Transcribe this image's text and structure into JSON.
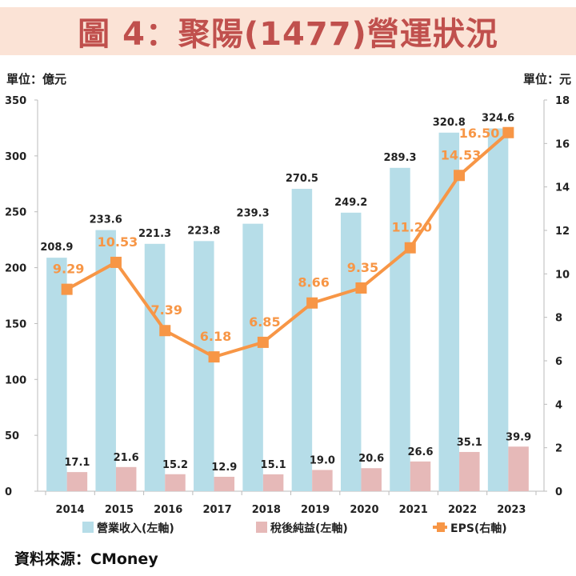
{
  "title": "圖 4：聚陽(1477)營運狀況",
  "left_unit": "單位：億元",
  "right_unit": "單位：元",
  "source": "資料來源：CMoney",
  "colors": {
    "revenue": "#b6dde8",
    "profit": "#e6b9b8",
    "eps": "#f79646",
    "title": "#c0504d",
    "title_bg": "#fbe3d6"
  },
  "chart_data": {
    "type": "bar+line",
    "categories": [
      "2014",
      "2015",
      "2016",
      "2017",
      "2018",
      "2019",
      "2020",
      "2021",
      "2022",
      "2023"
    ],
    "series": [
      {
        "name": "營業收入(左軸)",
        "type": "bar",
        "axis": "left",
        "values": [
          208.9,
          233.6,
          221.3,
          223.8,
          239.3,
          270.5,
          249.2,
          289.3,
          320.8,
          324.6
        ],
        "labels": [
          "208.9",
          "233.6",
          "221.3",
          "223.8",
          "239.3",
          "270.5",
          "249.2",
          "289.3",
          "320.8",
          "324.6"
        ]
      },
      {
        "name": "稅後純益(左軸)",
        "type": "bar",
        "axis": "left",
        "values": [
          17.1,
          21.6,
          15.2,
          12.9,
          15.1,
          19.0,
          20.6,
          26.6,
          35.1,
          39.9
        ],
        "labels": [
          "17.1",
          "21.6",
          "15.2",
          "12.9",
          "15.1",
          "19.0",
          "20.6",
          "26.6",
          "35.1",
          "39.9"
        ]
      },
      {
        "name": "EPS(右軸)",
        "type": "line",
        "axis": "right",
        "values": [
          9.29,
          10.53,
          7.39,
          6.18,
          6.85,
          8.66,
          9.35,
          11.2,
          14.53,
          16.5
        ],
        "labels": [
          "9.29",
          "10.53",
          "7.39",
          "6.18",
          "6.85",
          "8.66",
          "9.35",
          "11.20",
          "14.53",
          "16.50"
        ]
      }
    ],
    "left_axis": {
      "range": [
        0,
        350
      ],
      "ticks": [
        "0",
        "50",
        "100",
        "150",
        "200",
        "250",
        "300",
        "350"
      ]
    },
    "right_axis": {
      "range": [
        0,
        18
      ],
      "ticks": [
        "0",
        "2",
        "4",
        "6",
        "8",
        "10",
        "12",
        "14",
        "16",
        "18"
      ]
    },
    "grid": false,
    "legend": "bottom"
  }
}
